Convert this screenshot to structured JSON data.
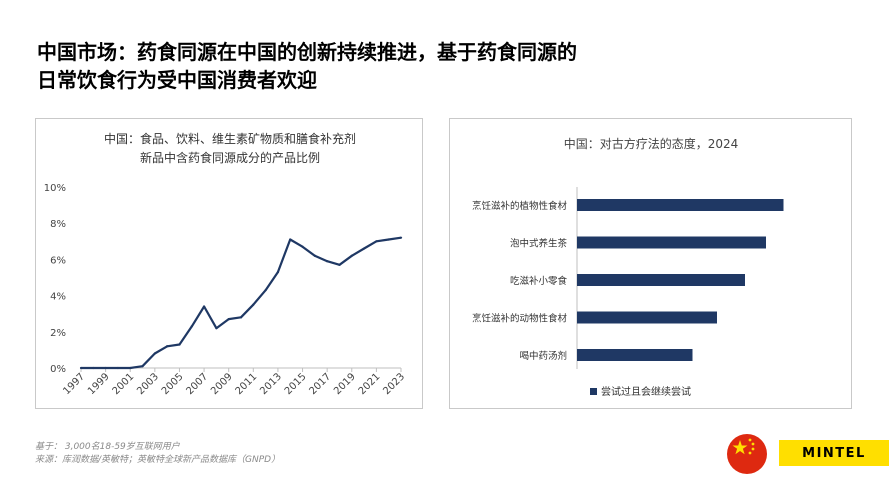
{
  "slide": {
    "title_line1": "中国市场：药食同源在中国的创新持续推进，基于药食同源的",
    "title_line2": "日常饮食行为受中国消费者欢迎",
    "footnote_base": "基于：  3,000名18-59岁互联网用户",
    "footnote_source": "来源：库润数据/英敏特；英敏特全球新产品数据库（GNPD）",
    "brand": "MINTEL",
    "colors": {
      "navy": "#1f3864",
      "brand_yellow": "#ffdf00",
      "flag_red": "#de2910",
      "flag_star": "#ffde00"
    }
  },
  "chart_data": [
    {
      "type": "line",
      "title": "中国：食品、饮料、维生素矿物质和膳食补充剂",
      "subtitle": "新品中含药食同源成分的产品比例",
      "x": [
        1997,
        1998,
        1999,
        2000,
        2001,
        2002,
        2003,
        2004,
        2005,
        2006,
        2007,
        2008,
        2009,
        2010,
        2011,
        2012,
        2013,
        2014,
        2015,
        2016,
        2017,
        2018,
        2019,
        2020,
        2021,
        2022,
        2023
      ],
      "values": [
        0,
        0,
        0,
        0,
        0,
        0.1,
        0.8,
        1.2,
        1.3,
        2.3,
        3.4,
        2.2,
        2.7,
        2.8,
        3.5,
        4.3,
        5.3,
        7.1,
        6.7,
        6.2,
        5.9,
        5.7,
        6.2,
        6.6,
        7.0,
        7.1,
        7.2
      ],
      "x_tick_labels": [
        "1997",
        "1999",
        "2001",
        "2003",
        "2005",
        "2007",
        "2009",
        "2011",
        "2013",
        "2015",
        "2017",
        "2019",
        "2021",
        "2023"
      ],
      "y_tick_labels": [
        "0%",
        "2%",
        "4%",
        "6%",
        "8%",
        "10%"
      ],
      "ylim": [
        0,
        10
      ],
      "xlabel": "",
      "ylabel": ""
    },
    {
      "type": "bar",
      "orientation": "horizontal",
      "title": "中国：对古方疗法的态度，2024",
      "categories": [
        "烹饪滋补的植物性食材",
        "泡中式养生茶",
        "吃滋补小零食",
        "烹饪滋补的动物性食材",
        "喝中药汤剂"
      ],
      "series": [
        {
          "name": "尝试过且会继续尝试",
          "values": [
            59,
            54,
            48,
            40,
            33
          ]
        }
      ],
      "xlim": [
        0,
        70
      ],
      "legend_position": "bottom"
    }
  ]
}
